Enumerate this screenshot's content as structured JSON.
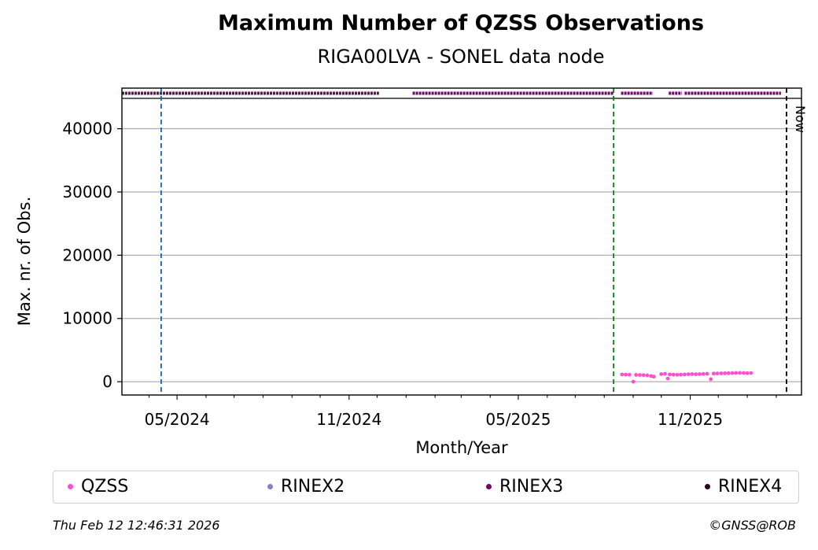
{
  "chart_data": {
    "type": "scatter",
    "title": "Maximum Number of QZSS Observations",
    "subtitle": "RIGA00LVA - SONEL data node",
    "xlabel": "Month/Year",
    "ylabel": "Max. nr. of Obs.",
    "x_ticks": [
      "05/2024",
      "11/2024",
      "05/2025",
      "11/2025"
    ],
    "y_ticks": [
      0,
      10000,
      20000,
      30000,
      40000
    ],
    "ylim": [
      -2100,
      44800
    ],
    "xlim": [
      "2024-03-03",
      "2026-02-28"
    ],
    "grid": "horizontal",
    "annotations": [
      {
        "date": "2024-04-14",
        "color": "#1f5fb4",
        "style": "dashed"
      },
      {
        "date": "2025-08-11",
        "color": "#157a1c",
        "style": "dashed"
      },
      {
        "date": "2026-02-12",
        "color": "#000000",
        "style": "dashed",
        "label": "Now"
      }
    ],
    "rinex3_availability": [
      {
        "start": "2024-03-03",
        "end": "2024-12-03"
      },
      {
        "start": "2025-01-08",
        "end": "2025-08-11"
      },
      {
        "start": "2025-08-19",
        "end": "2025-09-22"
      },
      {
        "start": "2025-10-09",
        "end": "2025-10-23"
      },
      {
        "start": "2025-10-26",
        "end": "2026-02-06"
      }
    ],
    "series": [
      {
        "name": "QZSS",
        "color": "#ff4fcf",
        "points": [
          {
            "x": "2025-08-20",
            "y": 1150
          },
          {
            "x": "2025-08-24",
            "y": 1120
          },
          {
            "x": "2025-08-28",
            "y": 1100
          },
          {
            "x": "2025-09-01",
            "y": 0
          },
          {
            "x": "2025-09-04",
            "y": 1080
          },
          {
            "x": "2025-09-08",
            "y": 1060
          },
          {
            "x": "2025-09-12",
            "y": 1040
          },
          {
            "x": "2025-09-16",
            "y": 1000
          },
          {
            "x": "2025-09-20",
            "y": 900
          },
          {
            "x": "2025-09-23",
            "y": 800
          },
          {
            "x": "2025-10-01",
            "y": 1200
          },
          {
            "x": "2025-10-05",
            "y": 1250
          },
          {
            "x": "2025-10-08",
            "y": 500
          },
          {
            "x": "2025-10-10",
            "y": 1150
          },
          {
            "x": "2025-10-14",
            "y": 1120
          },
          {
            "x": "2025-10-18",
            "y": 1100
          },
          {
            "x": "2025-10-22",
            "y": 1120
          },
          {
            "x": "2025-10-26",
            "y": 1150
          },
          {
            "x": "2025-10-30",
            "y": 1180
          },
          {
            "x": "2025-11-03",
            "y": 1200
          },
          {
            "x": "2025-11-07",
            "y": 1180
          },
          {
            "x": "2025-11-11",
            "y": 1200
          },
          {
            "x": "2025-11-15",
            "y": 1220
          },
          {
            "x": "2025-11-19",
            "y": 1250
          },
          {
            "x": "2025-11-23",
            "y": 400
          },
          {
            "x": "2025-11-26",
            "y": 1280
          },
          {
            "x": "2025-11-30",
            "y": 1300
          },
          {
            "x": "2025-12-04",
            "y": 1320
          },
          {
            "x": "2025-12-08",
            "y": 1330
          },
          {
            "x": "2025-12-12",
            "y": 1350
          },
          {
            "x": "2025-12-16",
            "y": 1360
          },
          {
            "x": "2025-12-20",
            "y": 1380
          },
          {
            "x": "2025-12-24",
            "y": 1400
          },
          {
            "x": "2025-12-28",
            "y": 1380
          },
          {
            "x": "2026-01-01",
            "y": 1350
          },
          {
            "x": "2026-01-05",
            "y": 1370
          }
        ]
      },
      {
        "name": "RINEX2",
        "color": "#8a7fbf",
        "points": []
      },
      {
        "name": "RINEX3",
        "color": "#6b0a6b",
        "points": []
      },
      {
        "name": "RINEX4",
        "color": "#2a0620",
        "points": []
      }
    ]
  },
  "footer": {
    "timestamp": "Thu Feb 12 12:46:31 2026",
    "credit": "©GNSS@ROB"
  }
}
